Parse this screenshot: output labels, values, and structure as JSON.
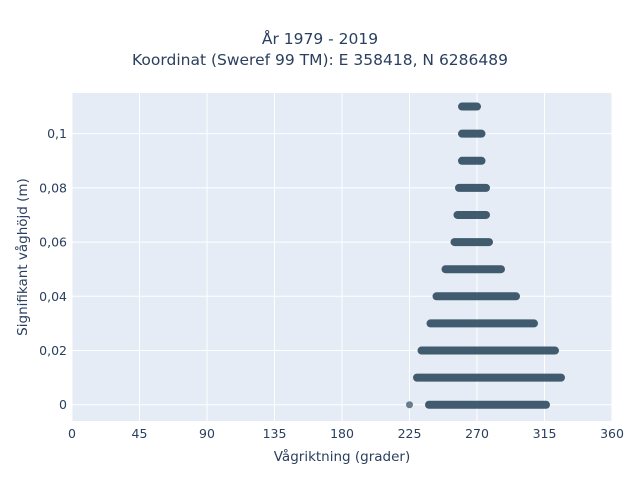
{
  "chart_data": {
    "type": "scatter",
    "title_line1": "År 1979 - 2019",
    "title_line2": "Koordinat (Sweref 99 TM): E 358418, N 6286489",
    "xlabel": "Vågriktning (grader)",
    "ylabel": "Signifikant våghöjd (m)",
    "xlim": [
      0,
      360
    ],
    "ylim": [
      -0.006,
      0.115
    ],
    "x_ticks": [
      0,
      45,
      90,
      135,
      180,
      225,
      270,
      315,
      360
    ],
    "x_tick_labels": [
      "0",
      "45",
      "90",
      "135",
      "180",
      "225",
      "270",
      "315",
      "360"
    ],
    "y_ticks": [
      0,
      0.02,
      0.04,
      0.06,
      0.08,
      0.1
    ],
    "y_tick_labels": [
      "0",
      "0,02",
      "0,04",
      "0,06",
      "0,08",
      "0,1"
    ],
    "grid": true,
    "background": "#E5ECF6",
    "marker_color": "#2F4B60",
    "bands": [
      {
        "y": 0.0,
        "x_min": 238,
        "x_max": 316
      },
      {
        "y": 0.01,
        "x_min": 230,
        "x_max": 326
      },
      {
        "y": 0.02,
        "x_min": 233,
        "x_max": 322
      },
      {
        "y": 0.03,
        "x_min": 239,
        "x_max": 308
      },
      {
        "y": 0.04,
        "x_min": 243,
        "x_max": 296
      },
      {
        "y": 0.05,
        "x_min": 249,
        "x_max": 286
      },
      {
        "y": 0.06,
        "x_min": 255,
        "x_max": 278
      },
      {
        "y": 0.07,
        "x_min": 257,
        "x_max": 276
      },
      {
        "y": 0.08,
        "x_min": 258,
        "x_max": 276
      },
      {
        "y": 0.09,
        "x_min": 260,
        "x_max": 273
      },
      {
        "y": 0.1,
        "x_min": 260,
        "x_max": 273
      },
      {
        "y": 0.11,
        "x_min": 260,
        "x_max": 270
      }
    ],
    "points": [
      {
        "x": 225,
        "y": 0.0
      }
    ]
  }
}
